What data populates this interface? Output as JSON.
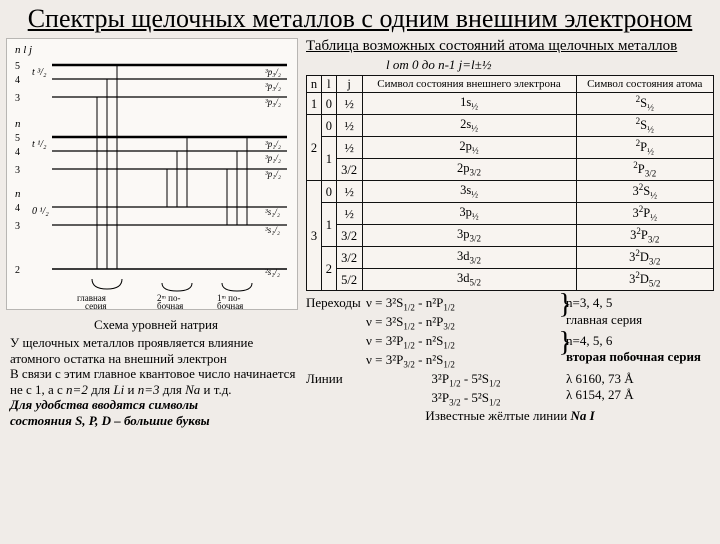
{
  "title": "Спектры щелочных металлов с одним внешним электроном",
  "diagram": {
    "caption": "Схема уровней натрия",
    "background": "#fbf9f6",
    "labels_left": [
      "n",
      "5",
      "4",
      "3",
      "n",
      "5",
      "4",
      "3",
      "n",
      "4",
      "3",
      "2"
    ],
    "series_labels": [
      "l  j",
      "t ³/₂",
      "t ¹/₂",
      "0 ¹/₂"
    ],
    "bottom_labels": [
      "главная серия",
      "2ᵐ по-бочная",
      "1ᵐ по-бочная"
    ]
  },
  "note": {
    "p1": "У щелочных металлов проявляется влияние атомного остатка на внешний электрон",
    "p2a": "В связи с этим главное квантовое число начинается не с 1, а с ",
    "p2b": "n=2",
    "p2c": " для ",
    "p2d": "Li",
    "p2e": " и ",
    "p2f": "n=3",
    "p2g": " для ",
    "p2h": "Na",
    "p2i": " и т.д.",
    "p3a": "Для удобства вводятся символы",
    "p3b": "состояния S, P, D – большие буквы"
  },
  "table_title": "Таблица возможных состояний атома щелочных металлов",
  "table_sub": "l от 0 до n-1  j=l±½",
  "table": {
    "headers": [
      "n",
      "l",
      "j",
      "Символ состояния внешнего электрона",
      "Символ состояния атома"
    ],
    "rows": [
      {
        "n": "1",
        "l": "0",
        "j": "½",
        "e": "1s<sub>½</sub>",
        "a": "<sup>2</sup>S<sub>½</sub>"
      },
      {
        "n": "2",
        "l": "0",
        "j": "½",
        "e": "2s<sub>½</sub>",
        "a": "<sup>2</sup>S<sub>½</sub>"
      },
      {
        "n": "2",
        "l": "1",
        "j": "½",
        "e": "2p<sub>½</sub>",
        "a": "<sup>2</sup>P<sub>½</sub>"
      },
      {
        "n": "2",
        "l": "1",
        "j": "3/2",
        "e": "2p<sub>3/2</sub>",
        "a": "<sup>2</sup>P<sub>3/2</sub>"
      },
      {
        "n": "3",
        "l": "0",
        "j": "½",
        "e": "3s<sub>½</sub>",
        "a": "3<sup>2</sup>S<sub>½</sub>"
      },
      {
        "n": "3",
        "l": "1",
        "j": "½",
        "e": "3p<sub>½</sub>",
        "a": "3<sup>2</sup>P<sub>½</sub>"
      },
      {
        "n": "3",
        "l": "1",
        "j": "3/2",
        "e": "3p<sub>3/2</sub>",
        "a": "3<sup>2</sup>P<sub>3/2</sub>"
      },
      {
        "n": "3",
        "l": "2",
        "j": "3/2",
        "e": "3d<sub>3/2</sub>",
        "a": "3<sup>2</sup>D<sub>3/2</sub>"
      },
      {
        "n": "3",
        "l": "2",
        "j": "5/2",
        "e": "3d<sub>5/2</sub>",
        "a": "3<sup>2</sup>D<sub>5/2</sub>"
      }
    ]
  },
  "below": {
    "transitions_label": "Переходы",
    "t1": "ν = 3²S<sub>1/2</sub> - n²P<sub>1/2</sub>",
    "t2": "ν = 3²S<sub>1/2</sub> - n²P<sub>3/2</sub>",
    "t1r": "n=3, 4, 5",
    "t2r": "главная серия",
    "t3": "ν = 3²P<sub>1/2</sub> - n²S<sub>1/2</sub>",
    "t4": "ν = 3²P<sub>3/2</sub> - n²S<sub>1/2</sub>",
    "t3r": "n=4, 5, 6",
    "t4r": "вторая побочная серия",
    "lines_label": "Линии",
    "l1": "3²P<sub>1/2</sub> - 5²S<sub>1/2</sub>",
    "l1r": "λ 6160, 73 Å",
    "l2": "3²P<sub>3/2</sub> - 5²S<sub>1/2</sub>",
    "l2r": "λ 6154, 27 Å",
    "yellow": "Известные жёлтые линии ",
    "yellow_b": "Na I"
  }
}
